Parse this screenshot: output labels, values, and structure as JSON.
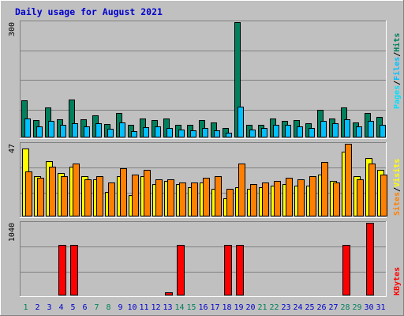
{
  "title": "Daily usage for August 2021",
  "colors": {
    "background": "#c0c0c0",
    "border": "#000000",
    "title_text": "#0000cc",
    "hits": "#00805c",
    "files": "#00c0ff",
    "pages": "#00e0ff",
    "visits": "#ffff00",
    "sites": "#ff8000",
    "kbytes": "#ff0000",
    "weekend_label": "#00805c",
    "weekday_label": "#0000cc"
  },
  "chart_data": [
    {
      "type": "bar",
      "title": "Daily usage for August 2021",
      "ylabel_parts": [
        "Pages",
        "Files",
        "Hits"
      ],
      "ytick_label": "300",
      "ylim": [
        0,
        300
      ],
      "categories": [
        "1",
        "2",
        "3",
        "4",
        "5",
        "6",
        "7",
        "8",
        "9",
        "10",
        "11",
        "12",
        "13",
        "14",
        "15",
        "16",
        "17",
        "18",
        "19",
        "20",
        "21",
        "22",
        "23",
        "24",
        "25",
        "26",
        "27",
        "28",
        "29",
        "30",
        "31"
      ],
      "series": [
        {
          "name": "Hits",
          "values": [
            96,
            46,
            78,
            48,
            98,
            48,
            58,
            35,
            64,
            33,
            50,
            46,
            50,
            33,
            33,
            46,
            40,
            25,
            300,
            33,
            33,
            50,
            43,
            46,
            36,
            72,
            50,
            78,
            40,
            64,
            54
          ]
        },
        {
          "name": "Files",
          "values": [
            50,
            29,
            43,
            33,
            38,
            29,
            38,
            22,
            40,
            17,
            27,
            29,
            25,
            21,
            19,
            25,
            19,
            12,
            80,
            21,
            25,
            32,
            32,
            29,
            25,
            43,
            36,
            48,
            29,
            43,
            33
          ]
        },
        {
          "name": "Pages",
          "values": [
            0,
            0,
            0,
            0,
            0,
            0,
            0,
            0,
            0,
            0,
            0,
            0,
            0,
            0,
            0,
            0,
            0,
            0,
            0,
            0,
            0,
            0,
            0,
            0,
            0,
            0,
            0,
            0,
            0,
            0,
            0
          ]
        }
      ]
    },
    {
      "type": "bar",
      "ylabel_parts": [
        "Sites",
        "Visits"
      ],
      "ytick_label": "47",
      "ylim": [
        0,
        47
      ],
      "categories": [
        "1",
        "2",
        "3",
        "4",
        "5",
        "6",
        "7",
        "8",
        "9",
        "10",
        "11",
        "12",
        "13",
        "14",
        "15",
        "16",
        "17",
        "18",
        "19",
        "20",
        "21",
        "22",
        "23",
        "24",
        "25",
        "26",
        "27",
        "28",
        "29",
        "30",
        "31"
      ],
      "series": [
        {
          "name": "Visits",
          "values": [
            44,
            26,
            36,
            28,
            32,
            26,
            24,
            16,
            26,
            14,
            26,
            21,
            23,
            21,
            19,
            22,
            18,
            12,
            19,
            18,
            19,
            20,
            21,
            20,
            20,
            27,
            23,
            42,
            26,
            38,
            30
          ]
        },
        {
          "name": "Sites",
          "values": [
            29,
            25,
            32,
            26,
            34,
            24,
            26,
            22,
            31,
            27,
            30,
            24,
            24,
            22,
            22,
            25,
            26,
            18,
            34,
            21,
            22,
            23,
            25,
            24,
            26,
            35,
            22,
            47,
            24,
            34,
            27
          ]
        }
      ]
    },
    {
      "type": "bar",
      "ylabel_parts": [
        "KBytes"
      ],
      "ytick_label": "1040",
      "ylim": [
        0,
        1040
      ],
      "categories": [
        "1",
        "2",
        "3",
        "4",
        "5",
        "6",
        "7",
        "8",
        "9",
        "10",
        "11",
        "12",
        "13",
        "14",
        "15",
        "16",
        "17",
        "18",
        "19",
        "20",
        "21",
        "22",
        "23",
        "24",
        "25",
        "26",
        "27",
        "28",
        "29",
        "30",
        "31"
      ],
      "series": [
        {
          "name": "KBytes",
          "values": [
            8,
            8,
            8,
            720,
            720,
            8,
            8,
            8,
            8,
            8,
            8,
            8,
            40,
            720,
            8,
            8,
            8,
            720,
            720,
            8,
            8,
            8,
            8,
            8,
            8,
            8,
            8,
            720,
            8,
            1040,
            8
          ]
        }
      ]
    }
  ],
  "weekend_days": [
    1,
    7,
    8,
    14,
    15,
    21,
    22,
    28,
    29
  ]
}
